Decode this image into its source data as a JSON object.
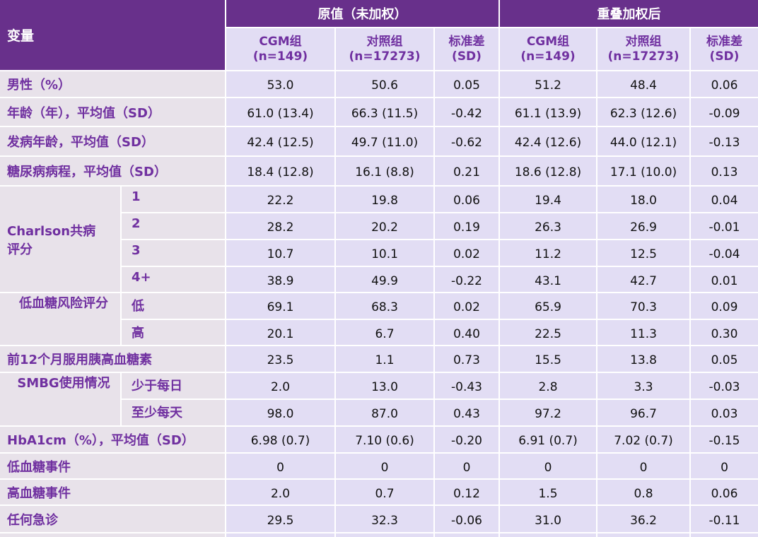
{
  "header": {
    "variable": "变量",
    "group_raw": "原值（未加权）",
    "group_weighted": "重叠加权后",
    "col_cgm": "CGM组\n(n=149)",
    "col_cgm_l1": "CGM组",
    "col_cgm_l2": "(n=149)",
    "col_ctrl_l1": "对照组",
    "col_ctrl_l2": "(n=17273)",
    "col_sd_l1": "标准差",
    "col_sd_l2": "(SD)"
  },
  "colors": {
    "header_bg": "#68308b",
    "subheader_bg": "#e2ddf4",
    "label_bg": "#e8e2ea",
    "label_text": "#7030a0"
  },
  "rows": [
    {
      "label": "男性（%）",
      "values": [
        "53.0",
        "50.6",
        "0.05",
        "51.2",
        "48.4",
        "0.06"
      ]
    },
    {
      "label": "年龄（年），平均值（SD）",
      "values": [
        "61.0 (13.4)",
        "66.3 (11.5)",
        "-0.42",
        "61.1 (13.9)",
        "62.3 (12.6)",
        "-0.09"
      ]
    },
    {
      "label": "发病年龄，平均值（SD）",
      "values": [
        "42.4 (12.5)",
        "49.7 (11.0)",
        "-0.62",
        "42.4 (12.6)",
        "44.0 (12.1)",
        "-0.13"
      ]
    },
    {
      "label": "糖尿病病程，平均值（SD）",
      "values": [
        "18.4 (12.8)",
        "16.1 (8.8)",
        "0.21",
        "18.6 (12.8)",
        "17.1 (10.0)",
        "0.13"
      ]
    },
    {
      "group": "Charlson共病\n评分",
      "group_l1": "Charlson共病",
      "group_l2": "评分",
      "label": "1",
      "values": [
        "22.2",
        "19.8",
        "0.06",
        "19.4",
        "18.0",
        "0.04"
      ]
    },
    {
      "label": "2",
      "values": [
        "28.2",
        "20.2",
        "0.19",
        "26.3",
        "26.9",
        "-0.01"
      ]
    },
    {
      "label": "3",
      "values": [
        "10.7",
        "10.1",
        "0.02",
        "11.2",
        "12.5",
        "-0.04"
      ]
    },
    {
      "label": "4+",
      "values": [
        "38.9",
        "49.9",
        "-0.22",
        "43.1",
        "42.7",
        "0.01"
      ]
    },
    {
      "group": "低血糖风险评分",
      "label": "低",
      "values": [
        "69.1",
        "68.3",
        "0.02",
        "65.9",
        "70.3",
        "0.09"
      ]
    },
    {
      "label": "高",
      "values": [
        "20.1",
        "6.7",
        "0.40",
        "22.5",
        "11.3",
        "0.30"
      ]
    },
    {
      "label": "前12个月服用胰高血糖素",
      "values": [
        "23.5",
        "1.1",
        "0.73",
        "15.5",
        "13.8",
        "0.05"
      ]
    },
    {
      "group": "SMBG使用情况",
      "label": "少于每日",
      "values": [
        "2.0",
        "13.0",
        "-0.43",
        "2.8",
        "3.3",
        "-0.03"
      ]
    },
    {
      "label": "至少每天",
      "values": [
        "98.0",
        "87.0",
        "0.43",
        "97.2",
        "96.7",
        "0.03"
      ]
    },
    {
      "label": "HbA1cm（%），平均值（SD）",
      "values": [
        "6.98 (0.7)",
        "7.10 (0.6)",
        "-0.20",
        "6.91 (0.7)",
        "7.02 (0.7)",
        "-0.15"
      ]
    },
    {
      "label": "低血糖事件",
      "values": [
        "0",
        "0",
        "0",
        "0",
        "0",
        "0"
      ]
    },
    {
      "label": "高血糖事件",
      "values": [
        "2.0",
        "0.7",
        "0.12",
        "1.5",
        "0.8",
        "0.06"
      ]
    },
    {
      "label": "任何急诊",
      "values": [
        "29.5",
        "32.3",
        "-0.06",
        "31.0",
        "36.2",
        "-0.11"
      ]
    }
  ]
}
